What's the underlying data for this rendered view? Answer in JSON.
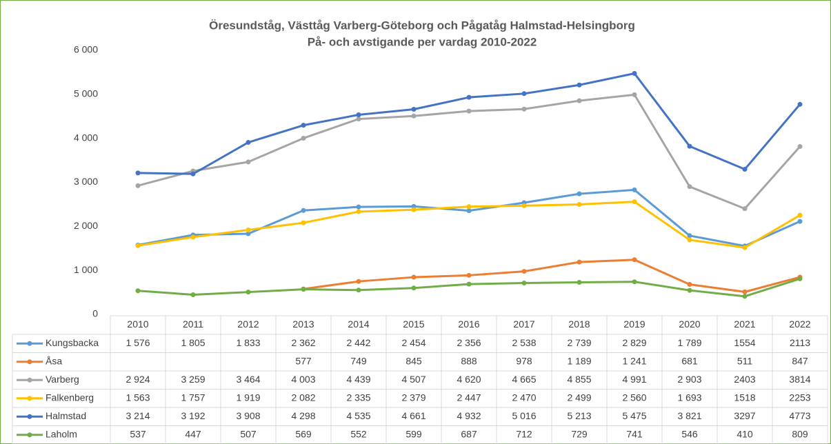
{
  "chart_data": {
    "type": "line",
    "title": "Öresundståg, Västtåg Varberg-Göteborg och Pågatåg Halmstad-Helsingborg",
    "subtitle": "På- och avstigande per vardag 2010-2022",
    "categories": [
      "2010",
      "2011",
      "2012",
      "2013",
      "2014",
      "2015",
      "2016",
      "2017",
      "2018",
      "2019",
      "2020",
      "2021",
      "2022"
    ],
    "ylim": [
      0,
      6000
    ],
    "yticks": [
      0,
      {
        "value": 1000,
        "label": "1 000"
      },
      {
        "value": 2000,
        "label": "2 000"
      },
      {
        "value": 3000,
        "label": "3 000"
      },
      {
        "value": 4000,
        "label": "4 000"
      },
      {
        "value": 5000,
        "label": "5 000"
      },
      {
        "value": 6000,
        "label": "6 000"
      }
    ],
    "grid": false,
    "series": [
      {
        "name": "Kungsbacka",
        "color": "#5b9bd5",
        "values": [
          1576,
          1805,
          1833,
          2362,
          2442,
          2454,
          2356,
          2538,
          2739,
          2829,
          1789,
          1554,
          2113
        ],
        "value_labels": [
          "1 576",
          "1 805",
          "1 833",
          "2 362",
          "2 442",
          "2 454",
          "2 356",
          "2 538",
          "2 739",
          "2 829",
          "1 789",
          "1554",
          "2113"
        ]
      },
      {
        "name": "Åsa",
        "color": "#ed7d31",
        "values": [
          null,
          null,
          null,
          577,
          749,
          845,
          888,
          978,
          1189,
          1241,
          681,
          511,
          847
        ],
        "value_labels": [
          null,
          null,
          null,
          "577",
          "749",
          "845",
          "888",
          "978",
          "1 189",
          "1 241",
          "681",
          "511",
          "847"
        ]
      },
      {
        "name": "Varberg",
        "color": "#a5a5a5",
        "values": [
          2924,
          3259,
          3464,
          4003,
          4439,
          4507,
          4620,
          4665,
          4855,
          4991,
          2903,
          2403,
          3814
        ],
        "value_labels": [
          "2 924",
          "3 259",
          "3 464",
          "4 003",
          "4 439",
          "4 507",
          "4 620",
          "4 665",
          "4 855",
          "4 991",
          "2 903",
          "2403",
          "3814"
        ]
      },
      {
        "name": "Falkenberg",
        "color": "#ffc000",
        "values": [
          1563,
          1757,
          1919,
          2082,
          2335,
          2379,
          2447,
          2470,
          2499,
          2560,
          1693,
          1518,
          2253
        ],
        "value_labels": [
          "1 563",
          "1 757",
          "1 919",
          "2 082",
          "2 335",
          "2 379",
          "2 447",
          "2 470",
          "2 499",
          "2 560",
          "1 693",
          "1518",
          "2253"
        ]
      },
      {
        "name": "Halmstad",
        "color": "#4472c4",
        "values": [
          3214,
          3192,
          3908,
          4298,
          4535,
          4661,
          4932,
          5016,
          5213,
          5475,
          3821,
          3297,
          4773
        ],
        "value_labels": [
          "3 214",
          "3 192",
          "3 908",
          "4 298",
          "4 535",
          "4 661",
          "4 932",
          "5 016",
          "5 213",
          "5 475",
          "3 821",
          "3297",
          "4773"
        ]
      },
      {
        "name": "Laholm",
        "color": "#70ad47",
        "values": [
          537,
          447,
          507,
          569,
          552,
          599,
          687,
          712,
          729,
          741,
          546,
          410,
          809
        ],
        "value_labels": [
          "537",
          "447",
          "507",
          "569",
          "552",
          "599",
          "687",
          "712",
          "729",
          "741",
          "546",
          "410",
          "809"
        ]
      }
    ]
  }
}
